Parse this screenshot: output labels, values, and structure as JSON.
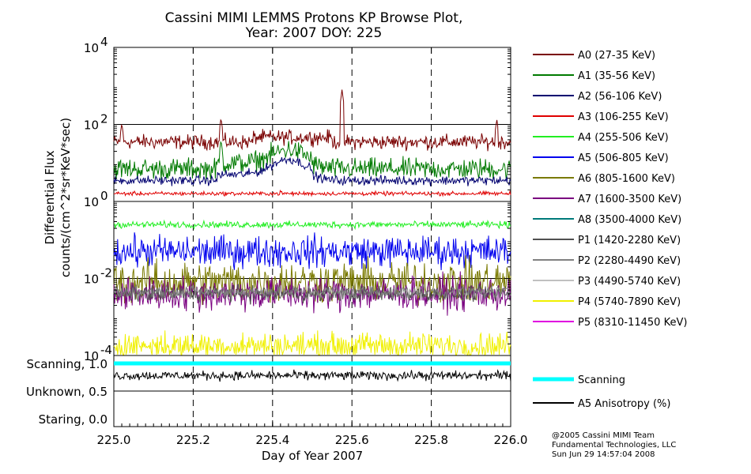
{
  "chart_data": {
    "type": "line",
    "title_line1": "Cassini MIMI LEMMS Protons KP Browse Plot,",
    "title_line2": "Year: 2007 DOY: 225",
    "xlabel": "Day of Year 2007",
    "ylabel_line1": "Differential Flux",
    "ylabel_line2": "counts/(cm^2*sr*KeV*sec)",
    "x_range": [
      225.0,
      226.0
    ],
    "x_ticks": [
      "225.0",
      "225.2",
      "225.4",
      "225.6",
      "225.8",
      "226.0"
    ],
    "x_tick_values": [
      225.0,
      225.2,
      225.4,
      225.6,
      225.8,
      226.0
    ],
    "y_scale": "log",
    "y_range": [
      0.0001,
      10000
    ],
    "y_ticks": [
      {
        "value": 10000,
        "base": "10",
        "exp": "4"
      },
      {
        "value": 100,
        "base": "10",
        "exp": "2"
      },
      {
        "value": 1,
        "base": "10",
        "exp": "0"
      },
      {
        "value": 0.01,
        "base": "10",
        "exp": "-2"
      },
      {
        "value": 0.0001,
        "base": "10",
        "exp": "-4"
      }
    ],
    "vertical_dashed_lines_at": [
      225.2,
      225.4,
      225.6,
      225.8
    ],
    "horizontal_grid_at": [
      100,
      1,
      0.01
    ],
    "series": [
      {
        "name": "A0 (27-35 KeV)",
        "color": "#7a0000",
        "baseline": 35,
        "noise": 0.55,
        "spikes": [
          [
            225.02,
            110
          ],
          [
            225.27,
            150
          ],
          [
            225.575,
            800
          ],
          [
            225.965,
            140
          ]
        ]
      },
      {
        "name": "A1 (35-56 KeV)",
        "color": "#007a00",
        "baseline": 7,
        "noise": 0.8,
        "spikes": [
          [
            225.27,
            40
          ],
          [
            225.42,
            14
          ],
          [
            225.47,
            20
          ]
        ]
      },
      {
        "name": "A2 (56-106 KeV)",
        "color": "#000070",
        "baseline": 3.5,
        "noise": 0.35,
        "spikes": [
          [
            225.42,
            9
          ]
        ]
      },
      {
        "name": "A3 (106-255 KeV)",
        "color": "#e00000",
        "baseline": 1.6,
        "noise": 0.15,
        "spikes": [
          [
            225.42,
            2.2
          ]
        ]
      },
      {
        "name": "A4 (255-506 KeV)",
        "color": "#22ee22",
        "baseline": 0.25,
        "noise": 0.25,
        "spikes": []
      },
      {
        "name": "A5 (506-805 KeV)",
        "color": "#0000ee",
        "baseline": 0.05,
        "noise": 1.2,
        "spikes": []
      },
      {
        "name": "A6 (805-1600 KeV)",
        "color": "#7a7a00",
        "baseline": 0.008,
        "noise": 1.6,
        "spikes": []
      },
      {
        "name": "A7 (1600-3500 KeV)",
        "color": "#7a0080",
        "baseline": 0.004,
        "noise": 1.3,
        "spikes": []
      },
      {
        "name": "A8 (3500-4000 KeV)",
        "color": "#007a7a",
        "baseline": null,
        "noise": 0,
        "spikes": []
      },
      {
        "name": "P1 (1420-2280 KeV)",
        "color": "#505050",
        "baseline": 0.004,
        "noise": 0.6,
        "spikes": []
      },
      {
        "name": "P2 (2280-4490 KeV)",
        "color": "#808080",
        "baseline": 0.0045,
        "noise": 0.5,
        "spikes": []
      },
      {
        "name": "P3 (4490-5740 KeV)",
        "color": "#c0c0c0",
        "baseline": null,
        "noise": 0,
        "spikes": []
      },
      {
        "name": "P4 (5740-7890 KeV)",
        "color": "#f0f000",
        "baseline": 0.00018,
        "noise": 1.0,
        "spikes": []
      },
      {
        "name": "P5 (8310-11450 KeV)",
        "color": "#e000e0",
        "baseline": null,
        "noise": 0,
        "spikes": []
      }
    ],
    "lower_panel": {
      "y_labels": [
        "Scanning, 1.0",
        "Unknown, 0.5",
        "Staring, 0.0"
      ],
      "y_values": [
        1.0,
        0.5,
        0.0
      ],
      "y_range": [
        0.0,
        1.0
      ],
      "scanning_value": 1.0,
      "scanning_color": "#00ffff",
      "anisotropy_baseline": 0.78,
      "anisotropy_noise": 0.12,
      "anisotropy_color": "#000000"
    },
    "lower_legend": [
      {
        "name": "Scanning",
        "color": "#00ffff",
        "thick": true
      },
      {
        "name": "A5 Anisotropy (%)",
        "color": "#000000",
        "thick": false
      }
    ]
  },
  "credits": {
    "line1": "@2005 Cassini MIMI Team",
    "line2": "Fundamental Technologies, LLC",
    "line3": "Sun Jun 29 14:57:04 2008"
  }
}
